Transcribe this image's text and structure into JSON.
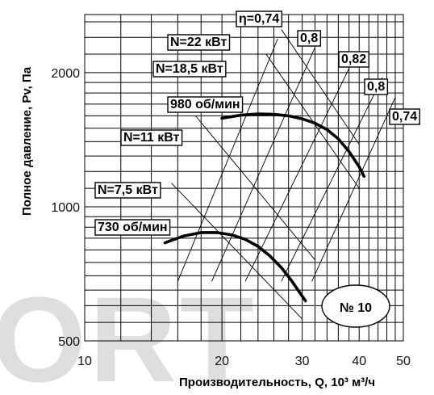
{
  "chart_data": {
    "type": "line",
    "xlabel": "Производительность, Q, 10³ м³/ч",
    "ylabel": "Полное давление, Pv, Па",
    "x_scale": "log",
    "y_scale": "log",
    "xlim": [
      10,
      50
    ],
    "ylim": [
      500,
      2700
    ],
    "x_ticks": [
      "10",
      "20",
      "30",
      "40",
      "50"
    ],
    "y_ticks": [
      "500",
      "1000",
      "2000"
    ],
    "model_label": "№ 10",
    "watermark": "ORT",
    "series": [
      {
        "name": "980 об/мин",
        "x": [
          20.0,
          22.0,
          24.0,
          26.0,
          28.0,
          30.0,
          32.0,
          34.0,
          36.0,
          38.0,
          40.0,
          41.0
        ],
        "y": [
          1580,
          1605,
          1615,
          1612,
          1600,
          1575,
          1540,
          1490,
          1420,
          1330,
          1230,
          1170
        ]
      },
      {
        "name": "730 об/мин",
        "x": [
          15.0,
          16.5,
          18.0,
          19.5,
          21.0,
          22.5,
          24.0,
          25.5,
          27.0,
          28.5,
          30.0,
          30.5
        ],
        "y": [
          830,
          860,
          875,
          875,
          865,
          845,
          815,
          775,
          730,
          680,
          630,
          615
        ]
      }
    ],
    "efficiency_lines": [
      {
        "label": "η=0,74",
        "x": [
          16.0,
          26.5
        ],
        "y": [
          680,
          2380
        ]
      },
      {
        "label": "0,8",
        "x": [
          19.0,
          32.0
        ],
        "y": [
          680,
          2280
        ]
      },
      {
        "label": "0,82",
        "x": [
          22.5,
          38.5
        ],
        "y": [
          680,
          2100
        ]
      },
      {
        "label": "0,8",
        "x": [
          27.0,
          45.0
        ],
        "y": [
          680,
          1950
        ]
      },
      {
        "label": "0,74",
        "x": [
          31.5,
          48.0
        ],
        "y": [
          680,
          1760
        ]
      }
    ],
    "power_lines": [
      {
        "label": "N=22 кВт",
        "x": [
          27.0,
          40.0
        ],
        "y": [
          2500,
          1380
        ]
      },
      {
        "label": "N=18,5 кВт",
        "x": [
          25.0,
          40.0
        ],
        "y": [
          2200,
          1100
        ]
      },
      {
        "label": "N=11 кВт",
        "x": [
          17.5,
          32.0
        ],
        "y": [
          1600,
          760
        ]
      },
      {
        "label": "N=7,5 кВт",
        "x": [
          15.5,
          30.0
        ],
        "y": [
          1130,
          560
        ]
      }
    ],
    "grid": true,
    "colors": {
      "line": "#000000",
      "background": "#ffffff",
      "watermark": "#dedede"
    }
  }
}
